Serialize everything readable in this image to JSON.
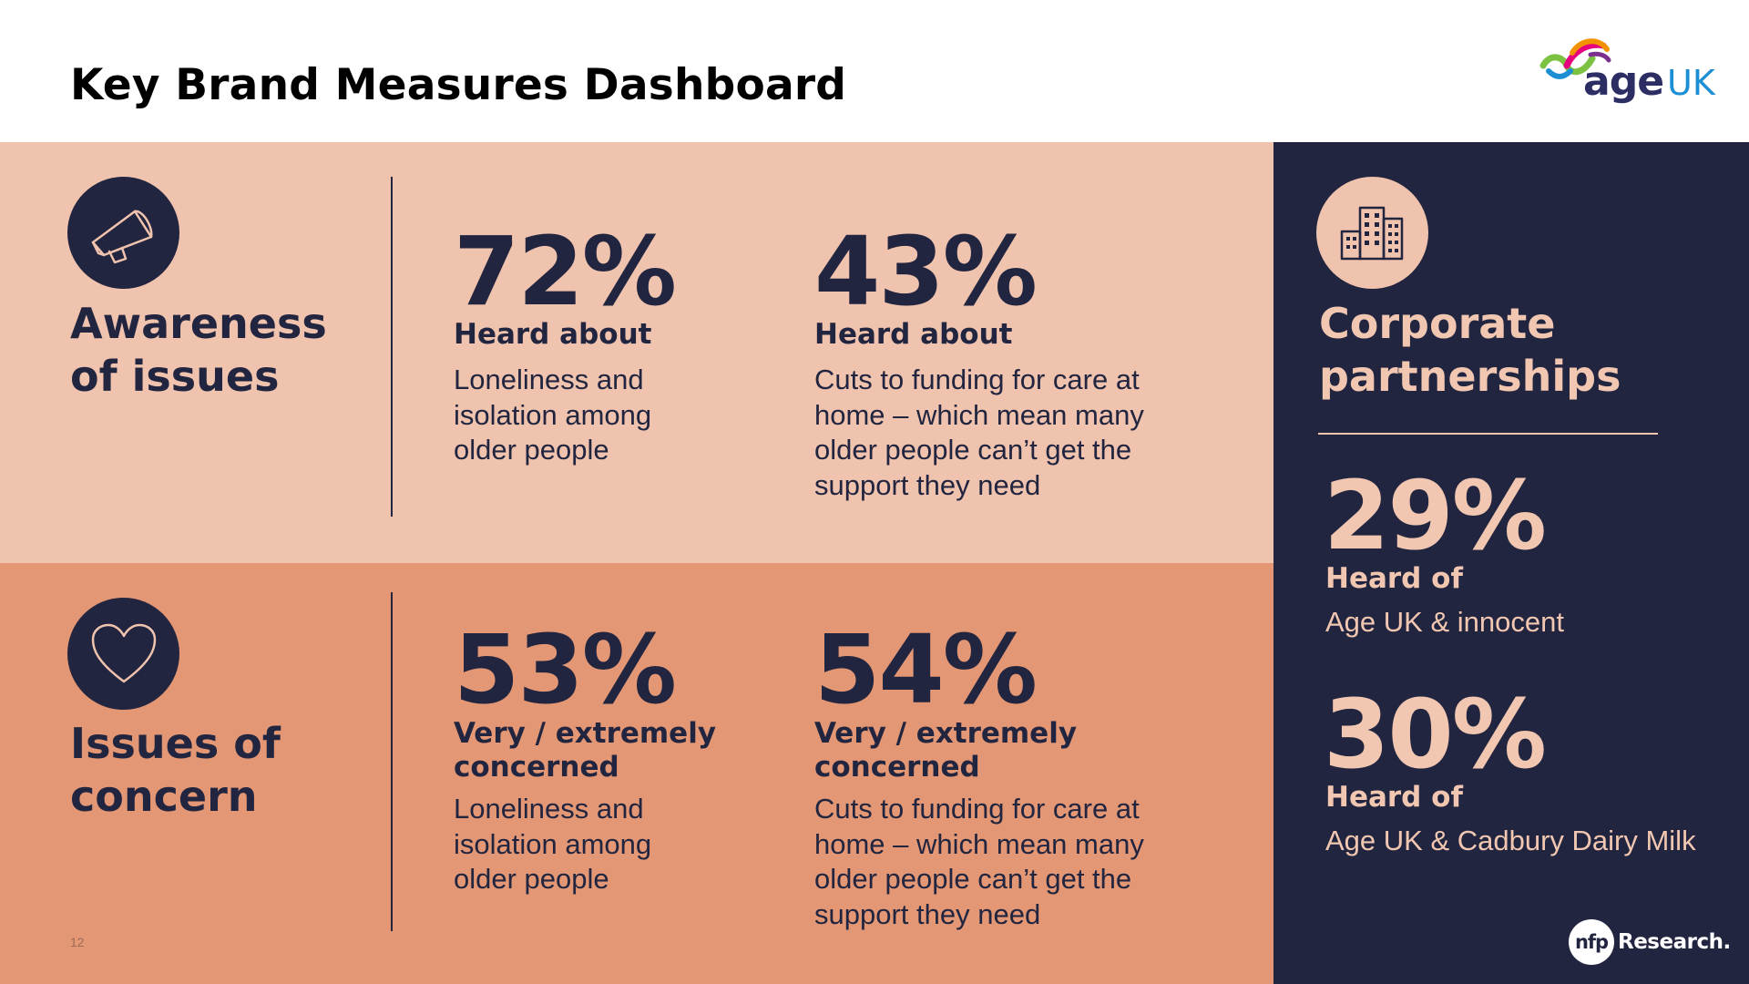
{
  "header": {
    "title": "Key Brand Measures Dashboard",
    "logo": {
      "main": "age",
      "suffix": "UK"
    }
  },
  "awareness": {
    "title": "Awareness of issues",
    "icon": "megaphone-icon",
    "stats": [
      {
        "value": "72%",
        "label": "Heard about",
        "description": "Loneliness and isolation among older people"
      },
      {
        "value": "43%",
        "label": "Heard about",
        "description": "Cuts to funding for care at home – which mean many older people can’t get the support they need"
      }
    ]
  },
  "concern": {
    "title": "Issues of concern",
    "icon": "heart-icon",
    "stats": [
      {
        "value": "53%",
        "label": "Very / extremely concerned",
        "description": "Loneliness and isolation among older people"
      },
      {
        "value": "54%",
        "label": "Very / extremely concerned",
        "description": "Cuts to funding for care at home – which mean many older people can’t get the support they need"
      }
    ]
  },
  "corporate": {
    "title": "Corporate partnerships",
    "icon": "buildings-icon",
    "stats": [
      {
        "value": "29%",
        "label": "Heard of",
        "description": "Age UK & innocent"
      },
      {
        "value": "30%",
        "label": "Heard of",
        "description": "Age UK & Cadbury Dairy Milk"
      }
    ]
  },
  "footer": {
    "page_number": "12",
    "brand_badge": "nfp",
    "brand_text": "Research."
  },
  "colors": {
    "navy": "#22253f",
    "peach_light": "#f0c3ae",
    "peach_dark": "#e39774",
    "text_light": "#f2c7b2"
  }
}
